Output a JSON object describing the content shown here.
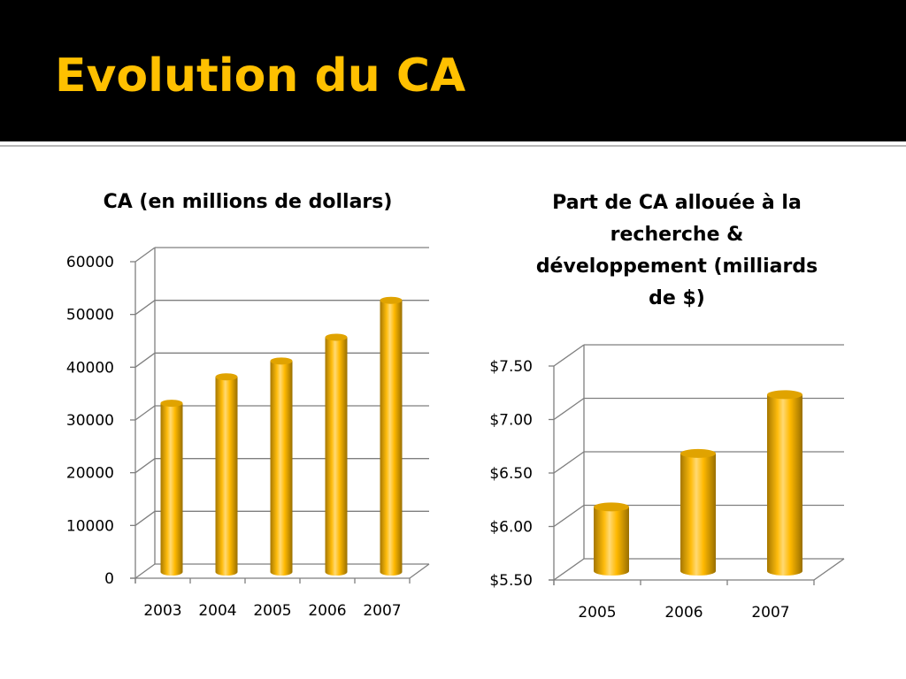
{
  "slide": {
    "title": "Evolution du CA"
  },
  "colors": {
    "header_background": "#000000",
    "title": "#ffc000",
    "bar": "#ffb900"
  },
  "chart_data": [
    {
      "type": "bar",
      "title": "CA (en millions de dollars)",
      "categories": [
        "2003",
        "2004",
        "2005",
        "2006",
        "2007"
      ],
      "values": [
        32000,
        37000,
        40000,
        44500,
        51500
      ],
      "y_ticks": [
        "0",
        "10000",
        "20000",
        "30000",
        "40000",
        "50000",
        "60000"
      ],
      "ylim": [
        0,
        60000
      ],
      "grid": true,
      "style": "3d-cylinder"
    },
    {
      "type": "bar",
      "title": "Part de CA allouée à la recherche & développement (milliards de $)",
      "title_lines": [
        "Part de CA allouée à la",
        "recherche &",
        "développement (milliards",
        "de $)"
      ],
      "categories": [
        "2005",
        "2006",
        "2007"
      ],
      "values": [
        6.1,
        6.6,
        7.15
      ],
      "y_ticks": [
        "$5.50",
        "$6.00",
        "$6.50",
        "$7.00",
        "$7.50"
      ],
      "ylim": [
        5.5,
        7.5
      ],
      "grid": true,
      "style": "3d-cylinder"
    }
  ]
}
